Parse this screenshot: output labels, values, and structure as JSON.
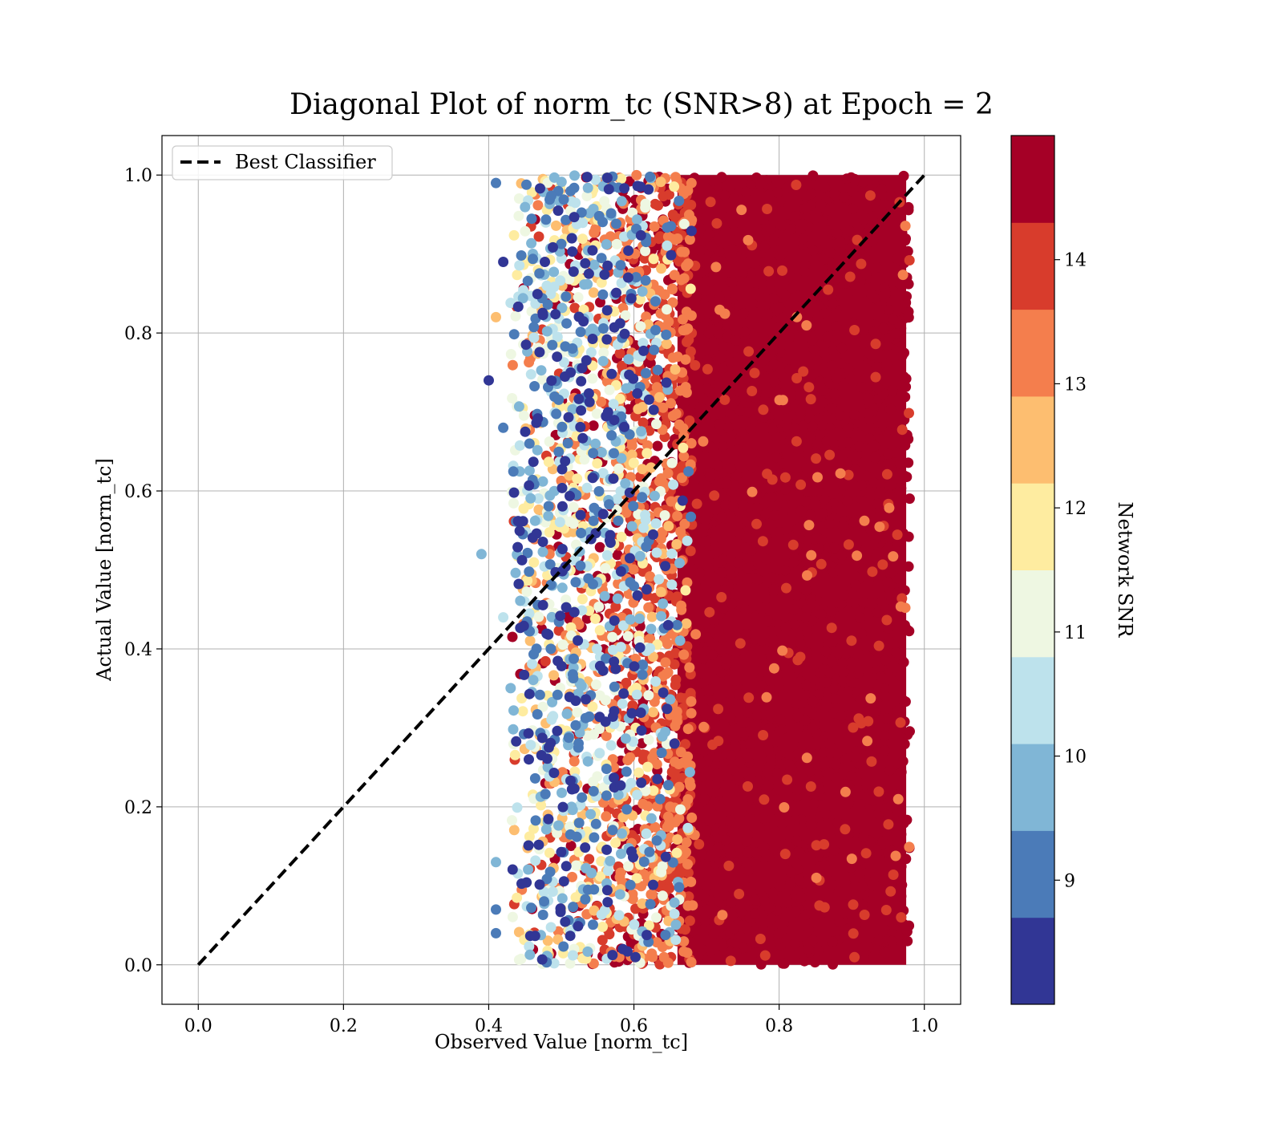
{
  "chart_data": {
    "type": "scatter",
    "title": "Diagonal Plot of norm_tc (SNR>8) at Epoch = 2",
    "xlabel": "Observed Value [norm_tc]",
    "ylabel": "Actual Value [norm_tc]",
    "xlim": [
      -0.05,
      1.05
    ],
    "ylim": [
      -0.05,
      1.05
    ],
    "xticks": [
      0.0,
      0.2,
      0.4,
      0.6,
      0.8,
      1.0
    ],
    "yticks": [
      0.0,
      0.2,
      0.4,
      0.6,
      0.8,
      1.0
    ],
    "xtick_labels": [
      "0.0",
      "0.2",
      "0.4",
      "0.6",
      "0.8",
      "1.0"
    ],
    "ytick_labels": [
      "0.0",
      "0.2",
      "0.4",
      "0.6",
      "0.8",
      "1.0"
    ],
    "grid": true,
    "legend": {
      "position": "top-left",
      "entries": [
        "Best Classifier"
      ]
    },
    "reference_line": {
      "name": "Best Classifier",
      "x": [
        0.0,
        1.0
      ],
      "y": [
        0.0,
        1.0
      ],
      "style": "dashed",
      "color": "#000000"
    },
    "point_cloud": {
      "x_range": [
        0.43,
        0.98
      ],
      "y_range": [
        0.0,
        1.0
      ],
      "color_by": "Network SNR",
      "low_snr_region_x": [
        0.43,
        0.62
      ],
      "high_snr_region_x": [
        0.62,
        0.98
      ],
      "sparse_outliers": [
        [
          0.39,
          0.52
        ],
        [
          0.41,
          0.99
        ],
        [
          0.41,
          0.82
        ],
        [
          0.4,
          0.74
        ],
        [
          0.41,
          0.13
        ],
        [
          0.41,
          0.07
        ],
        [
          0.41,
          0.04
        ],
        [
          0.42,
          0.89
        ],
        [
          0.42,
          0.68
        ],
        [
          0.42,
          0.44
        ]
      ]
    },
    "colorbar": {
      "label": "Network SNR",
      "range": [
        8.0,
        15.0
      ],
      "ticks": [
        9,
        10,
        11,
        12,
        13,
        14
      ],
      "tick_labels": [
        "9",
        "10",
        "11",
        "12",
        "13",
        "14"
      ],
      "colors": [
        "#313695",
        "#4575b4",
        "#74add1",
        "#abd9e9",
        "#e0f3f8",
        "#fee090",
        "#fdae61",
        "#f46d43",
        "#d73027",
        "#a50026"
      ],
      "display_colors": [
        "#313695",
        "#4b7bb8",
        "#80b6d6",
        "#bde2ec",
        "#eef7e2",
        "#feeca0",
        "#fdbe70",
        "#f47e4d",
        "#d83c2c",
        "#a50026"
      ]
    }
  }
}
